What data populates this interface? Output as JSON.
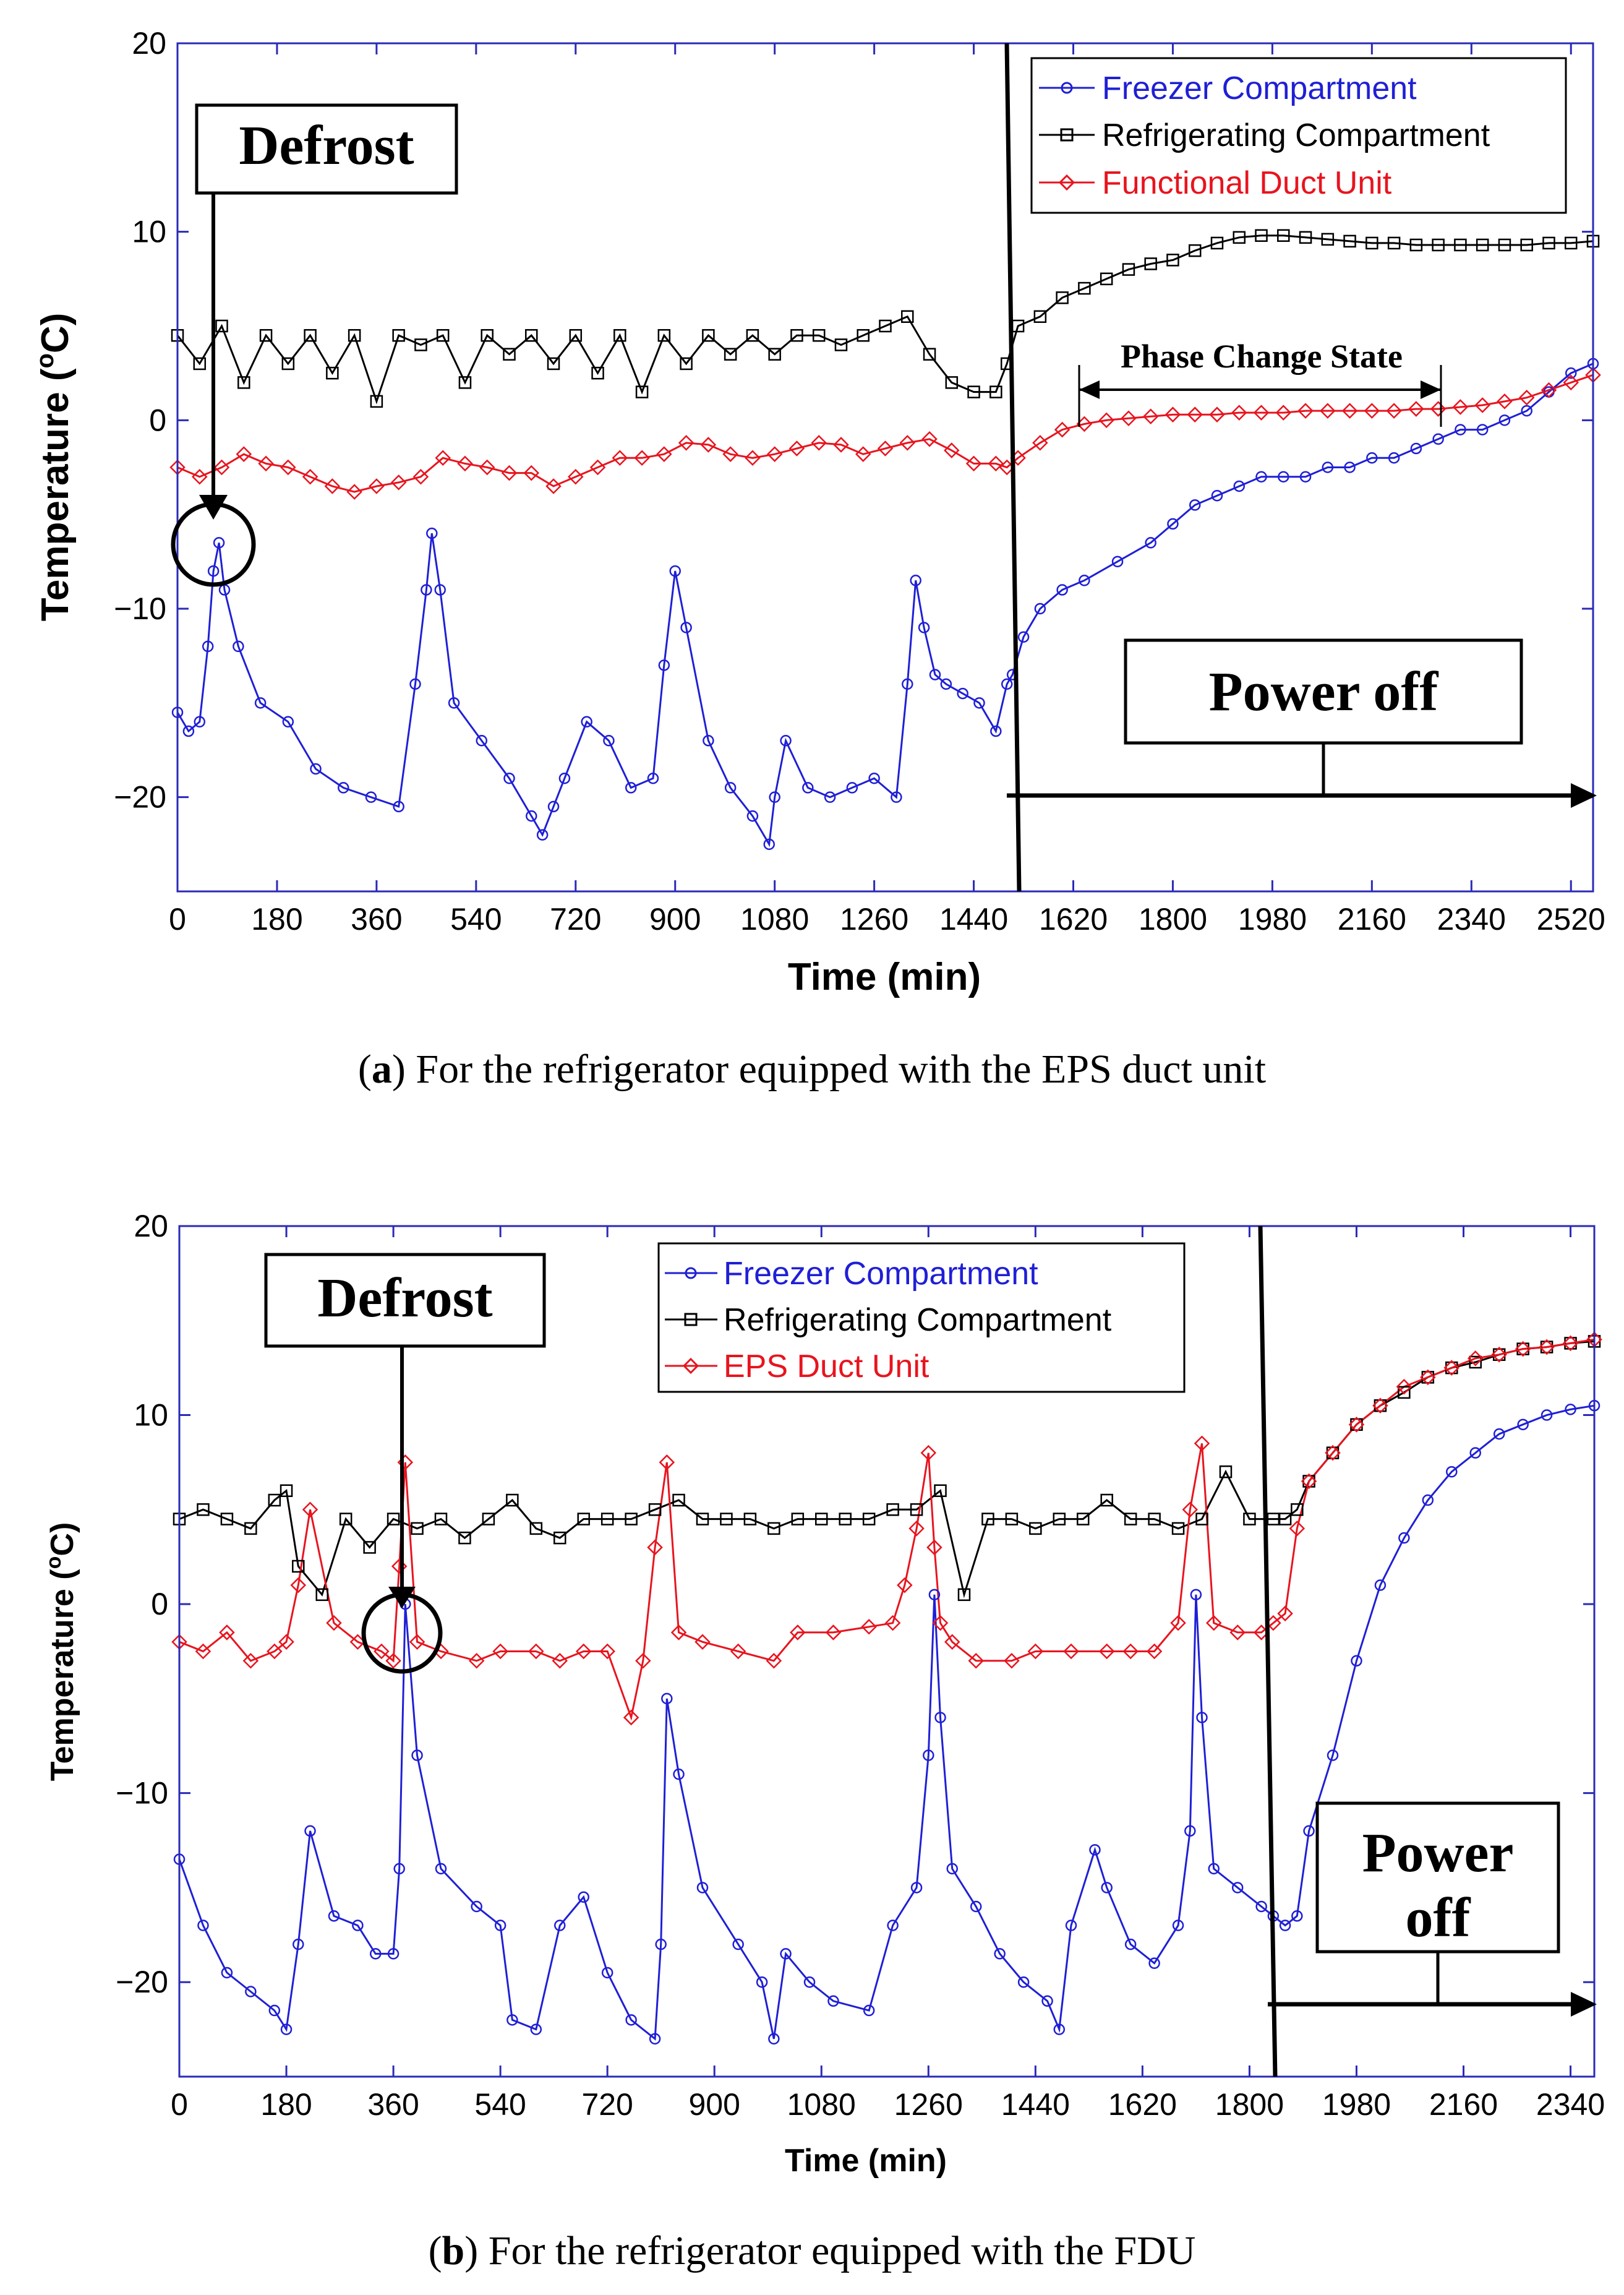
{
  "chart_data": [
    {
      "id": "a",
      "type": "line",
      "xlabel": "Time (min)",
      "ylabel_main": "Temperature (",
      "ylabel_sup": "o",
      "ylabel_tail": "C)",
      "xlim": [
        0,
        2560
      ],
      "ylim": [
        -25,
        20
      ],
      "xticks": [
        0,
        180,
        360,
        540,
        720,
        900,
        1080,
        1260,
        1440,
        1620,
        1800,
        1980,
        2160,
        2340,
        2520
      ],
      "yticks": [
        20,
        10,
        0,
        -10,
        -20
      ],
      "ytick_labels": [
        "20",
        "10",
        "0",
        "−10",
        "−20"
      ],
      "series": [
        {
          "name": "Freezer Compartment",
          "color": "#1f1fd6",
          "marker": "circle",
          "x": [
            0,
            20,
            40,
            55,
            65,
            75,
            85,
            110,
            150,
            200,
            250,
            300,
            350,
            400,
            430,
            450,
            460,
            475,
            500,
            550,
            600,
            640,
            660,
            680,
            700,
            740,
            780,
            820,
            860,
            880,
            900,
            920,
            960,
            1000,
            1040,
            1070,
            1080,
            1100,
            1140,
            1180,
            1220,
            1260,
            1300,
            1320,
            1335,
            1350,
            1370,
            1390,
            1420,
            1450,
            1480,
            1500,
            1510,
            1530,
            1560,
            1600,
            1640,
            1700,
            1760,
            1800,
            1840,
            1880,
            1920,
            1960,
            2000,
            2040,
            2080,
            2120,
            2160,
            2200,
            2240,
            2280,
            2320,
            2360,
            2400,
            2440,
            2480,
            2520,
            2560
          ],
          "y": [
            -15.5,
            -16.5,
            -16,
            -12,
            -8,
            -6.5,
            -9,
            -12,
            -15,
            -16,
            -18.5,
            -19.5,
            -20,
            -20.5,
            -14,
            -9,
            -6,
            -9,
            -15,
            -17,
            -19,
            -21,
            -22,
            -20.5,
            -19,
            -16,
            -17,
            -19.5,
            -19,
            -13,
            -8,
            -11,
            -17,
            -19.5,
            -21,
            -22.5,
            -20,
            -17,
            -19.5,
            -20,
            -19.5,
            -19,
            -20,
            -14,
            -8.5,
            -11,
            -13.5,
            -14,
            -14.5,
            -15,
            -16.5,
            -14,
            -13.5,
            -11.5,
            -10,
            -9,
            -8.5,
            -7.5,
            -6.5,
            -5.5,
            -4.5,
            -4,
            -3.5,
            -3,
            -3,
            -3,
            -2.5,
            -2.5,
            -2,
            -2,
            -1.5,
            -1,
            -0.5,
            -0.5,
            0,
            0.5,
            1.5,
            2.5,
            3
          ]
        },
        {
          "name": "Refrigerating Compartment",
          "color": "#000000",
          "marker": "square",
          "x": [
            0,
            40,
            80,
            120,
            160,
            200,
            240,
            280,
            320,
            360,
            400,
            440,
            480,
            520,
            560,
            600,
            640,
            680,
            720,
            760,
            800,
            840,
            880,
            920,
            960,
            1000,
            1040,
            1080,
            1120,
            1160,
            1200,
            1240,
            1280,
            1320,
            1360,
            1400,
            1440,
            1480,
            1500,
            1520,
            1560,
            1600,
            1640,
            1680,
            1720,
            1760,
            1800,
            1840,
            1880,
            1920,
            1960,
            2000,
            2040,
            2080,
            2120,
            2160,
            2200,
            2240,
            2280,
            2320,
            2360,
            2400,
            2440,
            2480,
            2520,
            2560
          ],
          "y": [
            4.5,
            3,
            5,
            2,
            4.5,
            3,
            4.5,
            2.5,
            4.5,
            1,
            4.5,
            4,
            4.5,
            2,
            4.5,
            3.5,
            4.5,
            3,
            4.5,
            2.5,
            4.5,
            1.5,
            4.5,
            3,
            4.5,
            3.5,
            4.5,
            3.5,
            4.5,
            4.5,
            4,
            4.5,
            5,
            5.5,
            3.5,
            2,
            1.5,
            1.5,
            3,
            5,
            5.5,
            6.5,
            7,
            7.5,
            8,
            8.3,
            8.5,
            9,
            9.4,
            9.7,
            9.8,
            9.8,
            9.7,
            9.6,
            9.5,
            9.4,
            9.4,
            9.3,
            9.3,
            9.3,
            9.3,
            9.3,
            9.3,
            9.4,
            9.4,
            9.5
          ]
        },
        {
          "name": "Functional Duct Unit",
          "color": "#e8141e",
          "marker": "diamond",
          "x": [
            0,
            40,
            80,
            120,
            160,
            200,
            240,
            280,
            320,
            360,
            400,
            440,
            480,
            520,
            560,
            600,
            640,
            680,
            720,
            760,
            800,
            840,
            880,
            920,
            960,
            1000,
            1040,
            1080,
            1120,
            1160,
            1200,
            1240,
            1280,
            1320,
            1360,
            1400,
            1440,
            1480,
            1500,
            1520,
            1560,
            1600,
            1640,
            1680,
            1720,
            1760,
            1800,
            1840,
            1880,
            1920,
            1960,
            2000,
            2040,
            2080,
            2120,
            2160,
            2200,
            2240,
            2280,
            2320,
            2360,
            2400,
            2440,
            2480,
            2520,
            2560
          ],
          "y": [
            -2.5,
            -3,
            -2.5,
            -1.8,
            -2.3,
            -2.5,
            -3,
            -3.5,
            -3.8,
            -3.5,
            -3.3,
            -3,
            -2,
            -2.3,
            -2.5,
            -2.8,
            -2.8,
            -3.5,
            -3,
            -2.5,
            -2,
            -2,
            -1.8,
            -1.2,
            -1.3,
            -1.8,
            -2,
            -1.8,
            -1.5,
            -1.2,
            -1.3,
            -1.8,
            -1.5,
            -1.2,
            -1,
            -1.6,
            -2.3,
            -2.3,
            -2.5,
            -2,
            -1.2,
            -0.5,
            -0.2,
            0,
            0.1,
            0.2,
            0.3,
            0.3,
            0.3,
            0.4,
            0.4,
            0.4,
            0.5,
            0.5,
            0.5,
            0.5,
            0.5,
            0.6,
            0.6,
            0.7,
            0.8,
            1,
            1.2,
            1.6,
            2,
            2.4
          ]
        }
      ],
      "annotations": {
        "defrost_label": "Defrost",
        "power_off_label": "Power off",
        "phase_change_label": "Phase Change State",
        "phase_change_range": [
          1620,
          2300
        ],
        "defrost_time": 75,
        "defrost_temp": -6.5,
        "power_off_time": 1520,
        "power_off_arrow_to": 2560
      },
      "caption_bold": "a",
      "caption_text": ") For the refrigerator equipped with the EPS duct unit"
    },
    {
      "id": "b",
      "type": "line",
      "xlabel": "Time (min)",
      "ylabel_main": "Temperature (",
      "ylabel_sup": "o",
      "ylabel_tail": "C)",
      "xlim": [
        0,
        2380
      ],
      "ylim": [
        -25,
        20
      ],
      "xticks": [
        0,
        180,
        360,
        540,
        720,
        900,
        1080,
        1260,
        1440,
        1620,
        1800,
        1980,
        2160,
        2340
      ],
      "yticks": [
        20,
        10,
        0,
        -10,
        -20
      ],
      "ytick_labels": [
        "20",
        "10",
        "0",
        "−10",
        "−20"
      ],
      "series": [
        {
          "name": "Freezer Compartment",
          "color": "#1f1fd6",
          "marker": "circle",
          "x": [
            0,
            40,
            80,
            120,
            160,
            180,
            200,
            220,
            260,
            300,
            330,
            360,
            370,
            380,
            400,
            440,
            500,
            540,
            560,
            600,
            640,
            680,
            720,
            760,
            800,
            810,
            820,
            840,
            880,
            940,
            980,
            1000,
            1020,
            1060,
            1100,
            1160,
            1200,
            1240,
            1260,
            1270,
            1280,
            1300,
            1340,
            1380,
            1420,
            1460,
            1480,
            1500,
            1540,
            1560,
            1600,
            1640,
            1680,
            1700,
            1710,
            1720,
            1740,
            1780,
            1820,
            1840,
            1860,
            1880,
            1900,
            1940,
            1980,
            2020,
            2060,
            2100,
            2140,
            2180,
            2220,
            2260,
            2300,
            2340,
            2380
          ],
          "y": [
            -13.5,
            -17,
            -19.5,
            -20.5,
            -21.5,
            -22.5,
            -18,
            -12,
            -16.5,
            -17,
            -18.5,
            -18.5,
            -14,
            0,
            -8,
            -14,
            -16,
            -17,
            -22,
            -22.5,
            -17,
            -15.5,
            -19.5,
            -22,
            -23,
            -18,
            -5,
            -9,
            -15,
            -18,
            -20,
            -23,
            -18.5,
            -20,
            -21,
            -21.5,
            -17,
            -15,
            -8,
            0.5,
            -6,
            -14,
            -16,
            -18.5,
            -20,
            -21,
            -22.5,
            -17,
            -13,
            -15,
            -18,
            -19,
            -17,
            -12,
            0.5,
            -6,
            -14,
            -15,
            -16,
            -16.5,
            -17,
            -16.5,
            -12,
            -8,
            -3,
            1,
            3.5,
            5.5,
            7,
            8,
            9,
            9.5,
            10,
            10.3,
            10.5
          ]
        },
        {
          "name": "Refrigerating Compartment",
          "color": "#000000",
          "marker": "square",
          "x": [
            0,
            40,
            80,
            120,
            160,
            180,
            200,
            240,
            280,
            320,
            360,
            400,
            440,
            480,
            520,
            560,
            600,
            640,
            680,
            720,
            760,
            800,
            840,
            880,
            920,
            960,
            1000,
            1040,
            1080,
            1120,
            1160,
            1200,
            1240,
            1280,
            1320,
            1360,
            1400,
            1440,
            1480,
            1520,
            1560,
            1600,
            1640,
            1680,
            1720,
            1760,
            1800,
            1840,
            1860,
            1880,
            1900,
            1940,
            1980,
            2020,
            2060,
            2100,
            2140,
            2180,
            2220,
            2260,
            2300,
            2340,
            2380
          ],
          "y": [
            4.5,
            5,
            4.5,
            4,
            5.5,
            6,
            2,
            0.5,
            4.5,
            3,
            4.5,
            4,
            4.5,
            3.5,
            4.5,
            5.5,
            4,
            3.5,
            4.5,
            4.5,
            4.5,
            5,
            5.5,
            4.5,
            4.5,
            4.5,
            4,
            4.5,
            4.5,
            4.5,
            4.5,
            5,
            5,
            6,
            0.5,
            4.5,
            4.5,
            4,
            4.5,
            4.5,
            5.5,
            4.5,
            4.5,
            4,
            4.5,
            7,
            4.5,
            4.5,
            4.5,
            5,
            6.5,
            8,
            9.5,
            10.5,
            11.2,
            12,
            12.5,
            12.8,
            13.2,
            13.5,
            13.6,
            13.8,
            13.9
          ]
        },
        {
          "name": "EPS Duct Unit",
          "color": "#e8141e",
          "marker": "diamond",
          "x": [
            0,
            40,
            80,
            120,
            160,
            180,
            200,
            220,
            260,
            300,
            340,
            360,
            370,
            380,
            400,
            440,
            500,
            540,
            600,
            640,
            680,
            720,
            760,
            780,
            800,
            820,
            840,
            880,
            940,
            1000,
            1040,
            1100,
            1160,
            1200,
            1220,
            1240,
            1260,
            1270,
            1280,
            1300,
            1340,
            1400,
            1440,
            1500,
            1560,
            1600,
            1640,
            1680,
            1700,
            1720,
            1740,
            1780,
            1820,
            1840,
            1860,
            1880,
            1900,
            1940,
            1980,
            2020,
            2060,
            2100,
            2140,
            2180,
            2220,
            2260,
            2300,
            2340,
            2380
          ],
          "y": [
            -2,
            -2.5,
            -1.5,
            -3,
            -2.5,
            -2,
            1,
            5,
            -1,
            -2,
            -2.5,
            -3,
            2,
            7.5,
            -2,
            -2.5,
            -3,
            -2.5,
            -2.5,
            -3,
            -2.5,
            -2.5,
            -6,
            -3,
            3,
            7.5,
            -1.5,
            -2,
            -2.5,
            -3,
            -1.5,
            -1.5,
            -1.2,
            -1,
            1,
            4,
            8,
            3,
            -1,
            -2,
            -3,
            -3,
            -2.5,
            -2.5,
            -2.5,
            -2.5,
            -2.5,
            -1,
            5,
            8.5,
            -1,
            -1.5,
            -1.5,
            -1,
            -0.5,
            4,
            6.5,
            8,
            9.5,
            10.5,
            11.5,
            12,
            12.5,
            13,
            13.2,
            13.5,
            13.6,
            13.8,
            14
          ]
        }
      ],
      "annotations": {
        "defrost_label": "Defrost",
        "power_off_label_1": "Power",
        "power_off_label_2": "off",
        "defrost_time": 375,
        "defrost_temp": 0,
        "power_off_time": 1840,
        "power_off_arrow_to": 2380
      },
      "caption_bold": "b",
      "caption_text": ") For the refrigerator equipped with the FDU"
    }
  ]
}
